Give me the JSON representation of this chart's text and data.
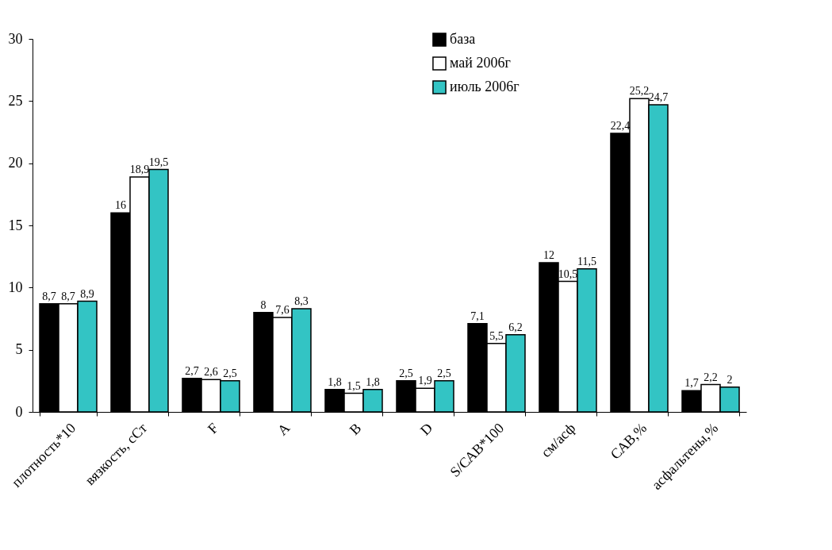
{
  "chart_data": {
    "type": "bar",
    "categories": [
      "плотность*10",
      "вязкость, сСт",
      "F",
      "A",
      "B",
      "D",
      "S/САВ*100",
      "см/асф",
      "САВ,%",
      "асфальтены,%"
    ],
    "series": [
      {
        "name": "база",
        "color": "#000000",
        "values": [
          8.7,
          16,
          2.7,
          8,
          1.8,
          2.5,
          7.1,
          12,
          22.4,
          1.7
        ],
        "value_labels": [
          "8,7",
          "16",
          "2,7",
          "8",
          "1,8",
          "2,5",
          "7,1",
          "12",
          "22,4",
          "1,7"
        ]
      },
      {
        "name": "май 2006г",
        "color": "#ffffff",
        "values": [
          8.7,
          18.9,
          2.6,
          7.6,
          1.5,
          1.9,
          5.5,
          10.5,
          25.2,
          2.2
        ],
        "value_labels": [
          "8,7",
          "18,9",
          "2,6",
          "7,6",
          "1,5",
          "1,9",
          "5,5",
          "10,5",
          "25,2",
          "2,2"
        ]
      },
      {
        "name": "июль 2006г",
        "color": "#33c4c4",
        "values": [
          8.9,
          19.5,
          2.5,
          8.3,
          1.8,
          2.5,
          6.2,
          11.5,
          24.7,
          2
        ],
        "value_labels": [
          "8,9",
          "19,5",
          "2,5",
          "8,3",
          "1,8",
          "2,5",
          "6,2",
          "11,5",
          "24,7",
          "2"
        ]
      }
    ],
    "ylim": [
      0,
      30
    ],
    "yticks": [
      0,
      5,
      10,
      15,
      20,
      25,
      30
    ],
    "grid": false,
    "legend": "top"
  }
}
